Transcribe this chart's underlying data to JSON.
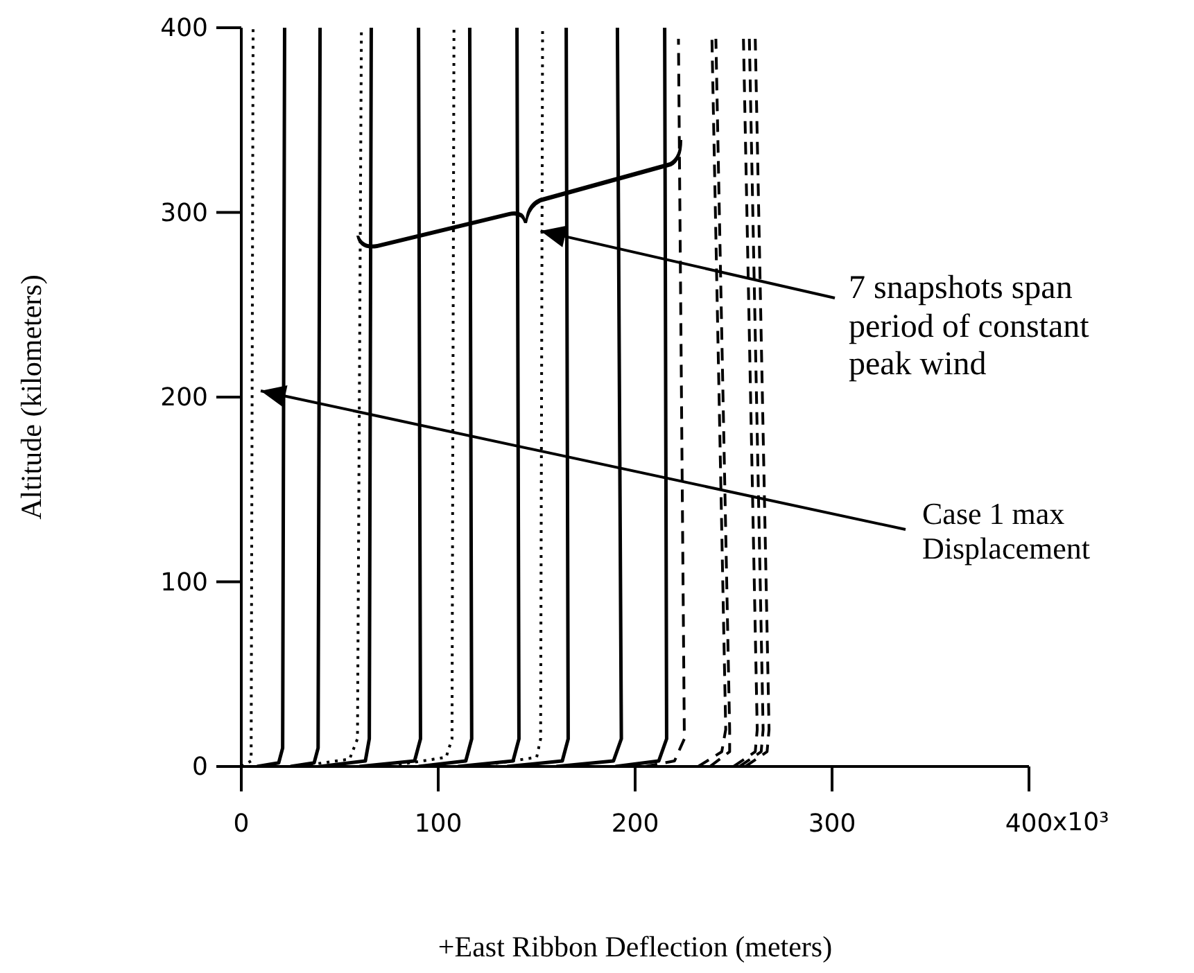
{
  "chart_data": {
    "type": "line",
    "xlabel": "+East Ribbon Deflection  (meters)",
    "ylabel": "Altitude  (kilometers)",
    "xlim": [
      0,
      400
    ],
    "xticks": [
      0,
      100,
      200,
      300,
      400
    ],
    "ylim": [
      0,
      400
    ],
    "yticks": [
      0,
      100,
      200,
      300,
      400
    ],
    "series": [
      {
        "color": "#000000",
        "line_style": "dotted",
        "x": [
          0,
          5,
          6
        ],
        "values": [
          0,
          3,
          400
        ]
      },
      {
        "color": "#000000",
        "line_style": "solid",
        "x": [
          8,
          19,
          21,
          22
        ],
        "values": [
          0,
          2,
          10,
          400
        ]
      },
      {
        "color": "#000000",
        "line_style": "solid",
        "x": [
          25,
          37,
          39,
          40
        ],
        "values": [
          0,
          2,
          10,
          400
        ]
      },
      {
        "color": "#000000",
        "line_style": "dotted",
        "x": [
          35,
          55,
          59,
          61
        ],
        "values": [
          1,
          4,
          15,
          400
        ]
      },
      {
        "color": "#000000",
        "line_style": "solid",
        "x": [
          40,
          63,
          65,
          66
        ],
        "values": [
          0,
          3,
          15,
          400
        ]
      },
      {
        "color": "#000000",
        "line_style": "solid",
        "x": [
          60,
          88,
          91,
          90
        ],
        "values": [
          0,
          3,
          15,
          400
        ]
      },
      {
        "color": "#000000",
        "line_style": "dotted",
        "x": [
          80,
          104,
          107,
          108
        ],
        "values": [
          1,
          5,
          15,
          400
        ]
      },
      {
        "color": "#000000",
        "line_style": "solid",
        "x": [
          90,
          114,
          117,
          116
        ],
        "values": [
          0,
          3,
          15,
          400
        ]
      },
      {
        "color": "#000000",
        "line_style": "solid",
        "x": [
          110,
          138,
          141,
          140
        ],
        "values": [
          0,
          3,
          15,
          400
        ]
      },
      {
        "color": "#000000",
        "line_style": "dotted",
        "x": [
          125,
          150,
          152,
          153
        ],
        "values": [
          1,
          5,
          15,
          400
        ]
      },
      {
        "color": "#000000",
        "line_style": "solid",
        "x": [
          135,
          163,
          166,
          165
        ],
        "values": [
          0,
          3,
          15,
          400
        ]
      },
      {
        "color": "#000000",
        "line_style": "solid",
        "x": [
          160,
          189,
          193,
          191
        ],
        "values": [
          0,
          3,
          15,
          400
        ]
      },
      {
        "color": "#000000",
        "line_style": "solid",
        "x": [
          190,
          212,
          216,
          215
        ],
        "values": [
          0,
          3,
          15,
          400
        ]
      },
      {
        "color": "#000000",
        "line_style": "dashed",
        "x": [
          205,
          220,
          225,
          222
        ],
        "values": [
          0,
          3,
          15,
          394
        ]
      },
      {
        "color": "#000000",
        "line_style": "dashed",
        "x": [
          232,
          244,
          246,
          239
        ],
        "values": [
          0,
          8,
          20,
          394
        ]
      },
      {
        "color": "#000000",
        "line_style": "dashed",
        "x": [
          238,
          248,
          248,
          241
        ],
        "values": [
          0,
          8,
          20,
          394
        ]
      },
      {
        "color": "#000000",
        "line_style": "dashed",
        "x": [
          250,
          261,
          262,
          255
        ],
        "values": [
          0,
          8,
          20,
          394
        ]
      },
      {
        "color": "#000000",
        "line_style": "dashed",
        "x": [
          253,
          264,
          265,
          258
        ],
        "values": [
          0,
          8,
          20,
          394
        ]
      },
      {
        "color": "#000000",
        "line_style": "dashed",
        "x": [
          256,
          267,
          268,
          261
        ],
        "values": [
          0,
          8,
          20,
          394
        ]
      }
    ],
    "annotations": [
      {
        "text": "7 snapshots span period of constant peak wind",
        "x": 152,
        "y": 290
      },
      "Case 1 max Displacement",
      "x10³"
    ]
  }
}
